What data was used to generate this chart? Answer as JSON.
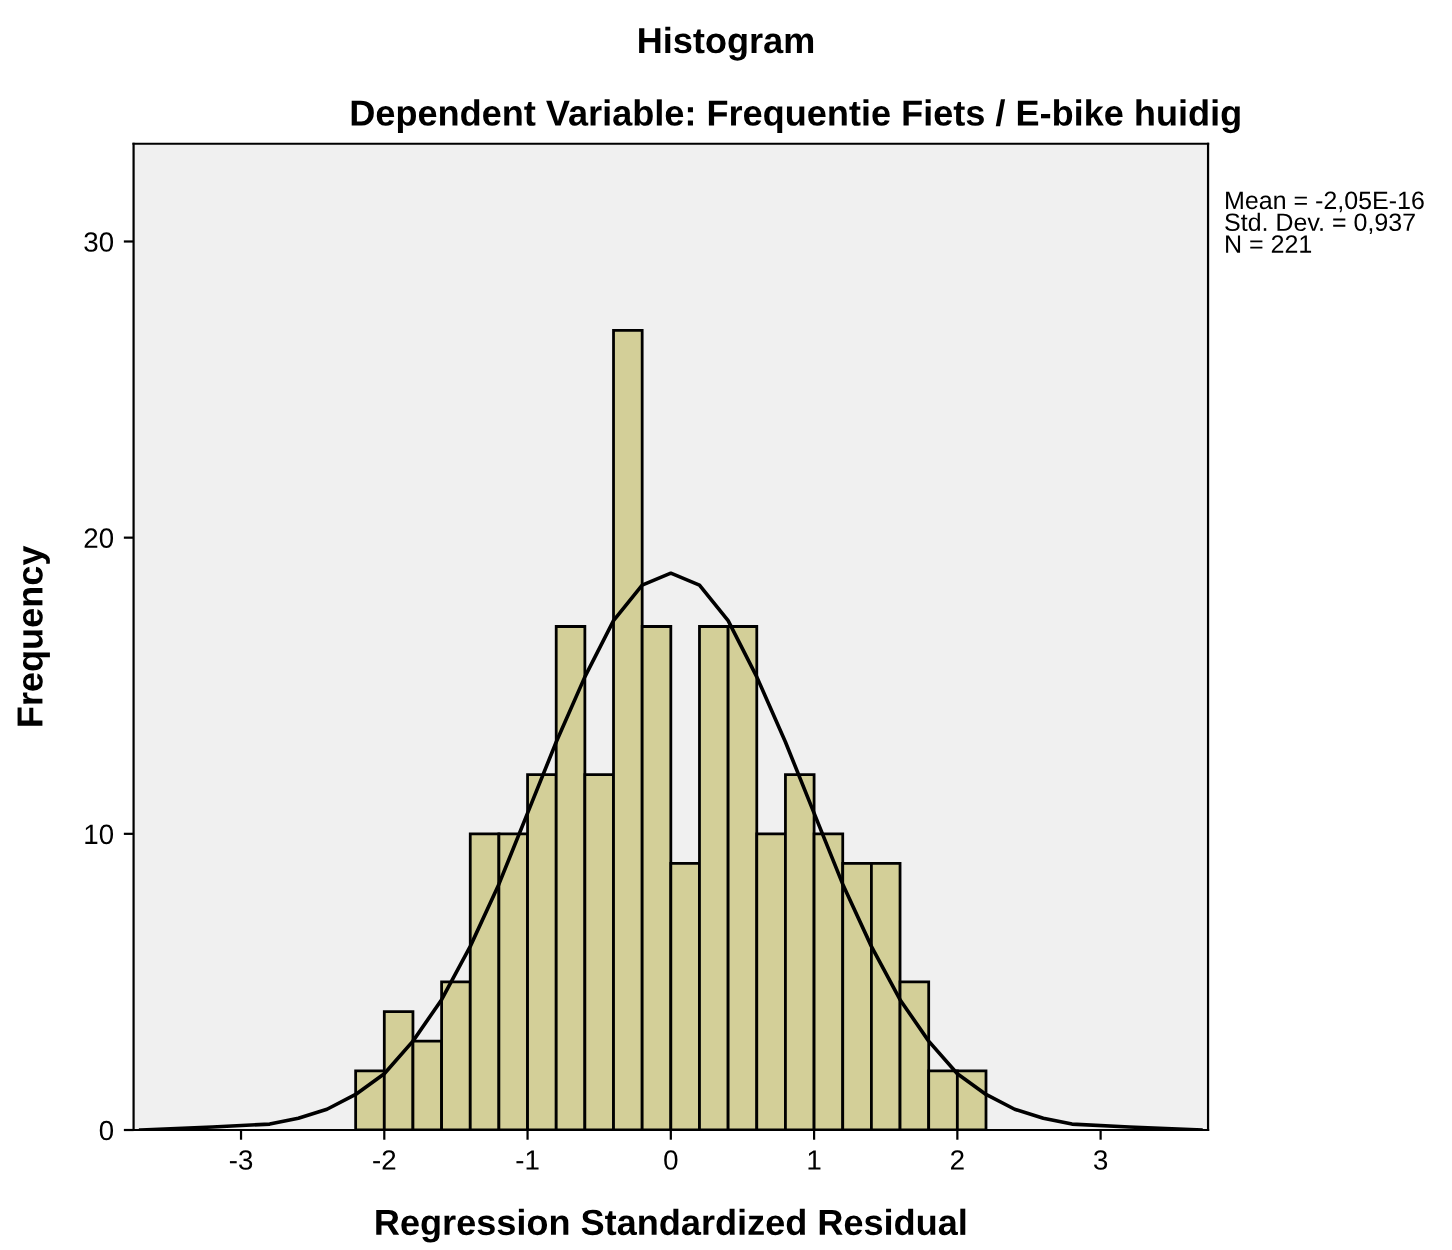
{
  "chart_data": {
    "type": "histogram",
    "title": "Histogram",
    "subtitle": "Dependent Variable: Frequentie Fiets / E-bike huidig",
    "xlabel": "Regression Standardized Residual",
    "ylabel": "Frequency",
    "bins": [
      -2.2,
      -2.0,
      -1.8,
      -1.6,
      -1.4,
      -1.2,
      -1.0,
      -0.8,
      -0.6,
      -0.4,
      -0.2,
      0.0,
      0.2,
      0.4,
      0.6,
      0.8,
      1.0,
      1.2,
      1.4,
      1.6,
      1.8,
      2.0,
      2.2
    ],
    "values": [
      2,
      4,
      3,
      5,
      10,
      10,
      12,
      17,
      12,
      27,
      17,
      9,
      17,
      17,
      10,
      12,
      10,
      9,
      9,
      5,
      2,
      2
    ],
    "color": "#d3cf98",
    "series": [
      {
        "type": "line",
        "color": "#000000",
        "x": [
          -3.7,
          -3.2,
          -2.8,
          -2.6,
          -2.4,
          -2.2,
          -2.0,
          -1.8,
          -1.6,
          -1.4,
          -1.2,
          -1.0,
          -0.8,
          -0.6,
          -0.4,
          -0.2,
          0.0,
          0.2,
          0.4,
          0.6,
          0.8,
          1.0,
          1.2,
          1.4,
          1.6,
          1.8,
          2.0,
          2.2,
          2.4,
          2.6,
          2.8,
          3.2,
          3.7
        ],
        "values": [
          0.0,
          0.1,
          0.2,
          0.4,
          0.7,
          1.2,
          1.9,
          3.0,
          4.4,
          6.2,
          8.3,
          10.7,
          13.1,
          15.3,
          17.2,
          18.4,
          18.8,
          18.4,
          17.2,
          15.3,
          13.1,
          10.7,
          8.3,
          6.2,
          4.4,
          3.0,
          1.9,
          1.2,
          0.7,
          0.4,
          0.2,
          0.1,
          0.0
        ]
      }
    ],
    "xlim": [
      -3.75,
      3.75
    ],
    "ylim": [
      0,
      33.3
    ],
    "xticks": [
      -3,
      -2,
      -1,
      0,
      1,
      2,
      3
    ],
    "yticks": [
      0,
      10,
      20,
      30
    ],
    "grid": false,
    "legend": false,
    "annotations": [
      "Mean = -2,05E-16",
      "Std. Dev. = 0,937",
      "N = 221"
    ]
  }
}
